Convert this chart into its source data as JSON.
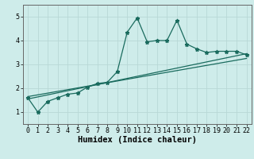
{
  "xlabel": "Humidex (Indice chaleur)",
  "xlim": [
    -0.5,
    22.5
  ],
  "ylim": [
    0.5,
    5.5
  ],
  "yticks": [
    1,
    2,
    3,
    4,
    5
  ],
  "xticks": [
    0,
    1,
    2,
    3,
    4,
    5,
    6,
    7,
    8,
    9,
    10,
    11,
    12,
    13,
    14,
    15,
    16,
    17,
    18,
    19,
    20,
    21,
    22
  ],
  "bg_color": "#ceecea",
  "grid_color": "#b8d8d6",
  "line_color": "#1a6b5e",
  "line1_x": [
    0,
    1,
    2,
    3,
    4,
    5,
    6,
    7,
    8,
    9,
    10,
    11,
    12,
    13,
    14,
    15,
    16,
    17,
    18,
    19,
    20,
    21,
    22
  ],
  "line1_y": [
    1.6,
    1.0,
    1.45,
    1.6,
    1.75,
    1.8,
    2.05,
    2.2,
    2.25,
    2.7,
    4.35,
    4.95,
    3.95,
    4.0,
    4.0,
    4.85,
    3.85,
    3.65,
    3.5,
    3.55,
    3.55,
    3.55,
    3.4
  ],
  "line2_x": [
    0,
    22
  ],
  "line2_y": [
    1.55,
    3.45
  ],
  "line3_x": [
    0,
    22
  ],
  "line3_y": [
    1.65,
    3.25
  ],
  "marker": "*",
  "markersize": 3.5,
  "linewidth": 0.9,
  "tick_fontsize": 6,
  "label_fontsize": 7.5
}
